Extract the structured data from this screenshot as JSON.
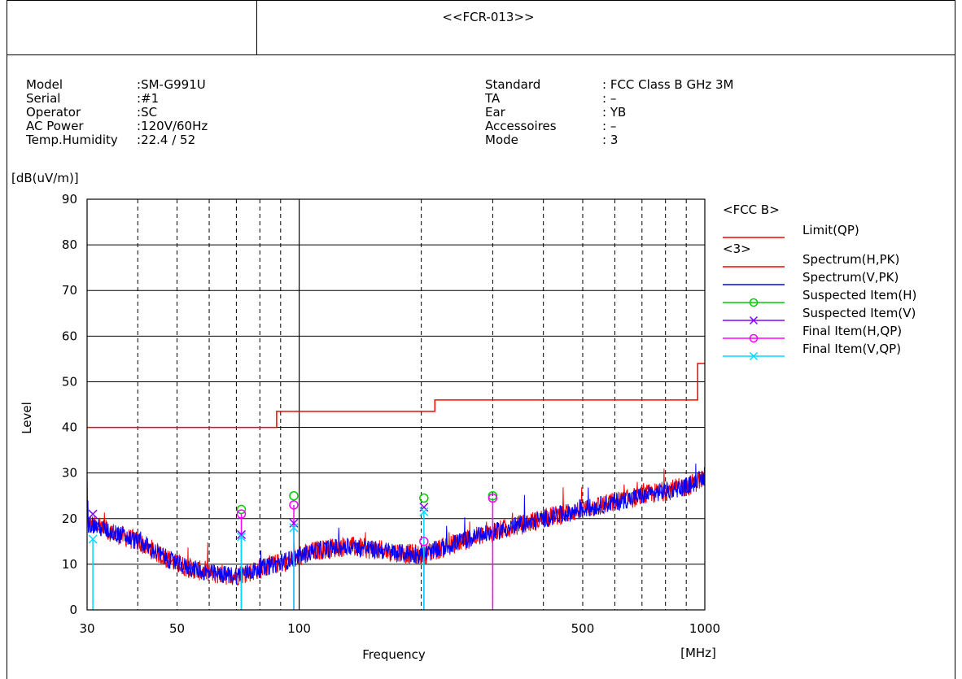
{
  "header": {
    "doc_id": "<<FCR-013>>"
  },
  "info_left": [
    {
      "key": "Model",
      "value": "SM-G991U"
    },
    {
      "key": "Serial",
      "value": "#1"
    },
    {
      "key": "Operator",
      "value": "SC"
    },
    {
      "key": "AC Power",
      "value": "120V/60Hz"
    },
    {
      "key": "Temp.Humidity",
      "value": "22.4 / 52"
    }
  ],
  "info_right": [
    {
      "key": "Standard",
      "value": "FCC Class B GHz 3M"
    },
    {
      "key": "TA",
      "value": "–"
    },
    {
      "key": "Ear",
      "value": "YB"
    },
    {
      "key": "Accessoires",
      "value": "–"
    },
    {
      "key": "Mode",
      "value": "3"
    }
  ],
  "chart_data": {
    "type": "line",
    "ylabel": "Level",
    "yunit": "[dB(uV/m)]",
    "xlabel": "Frequency",
    "xunit": "[MHz]",
    "xscale": "log",
    "xlim": [
      30,
      1000
    ],
    "ylim": [
      0,
      90
    ],
    "x_ticks": [
      30,
      50,
      100,
      500,
      1000
    ],
    "y_ticks": [
      0,
      10,
      20,
      30,
      40,
      50,
      60,
      70,
      80,
      90
    ],
    "grid": true,
    "legend_position": "right",
    "colors": {
      "red": "#ff0000",
      "blue": "#0000ff",
      "green": "#00cc00",
      "purple": "#8a00ff",
      "magenta": "#ff00ff",
      "cyan": "#00d8ff"
    },
    "legend": [
      {
        "group": "<FCC B>"
      },
      {
        "name": "Limit(QP)",
        "color": "#ff0000",
        "marker": "none"
      },
      {
        "group": "<3>"
      },
      {
        "name": "Spectrum(H,PK)",
        "color": "#ff0000",
        "marker": "none"
      },
      {
        "name": "Spectrum(V,PK)",
        "color": "#0000ff",
        "marker": "none"
      },
      {
        "name": "Suspected Item(H)",
        "color": "#00cc00",
        "marker": "circle"
      },
      {
        "name": "Suspected Item(V)",
        "color": "#8a00ff",
        "marker": "cross"
      },
      {
        "name": "Final Item(H,QP)",
        "color": "#ff00ff",
        "marker": "circle"
      },
      {
        "name": "Final Item(V,QP)",
        "color": "#00d8ff",
        "marker": "cross"
      }
    ],
    "limit_qp": [
      {
        "x": 30,
        "y": 40
      },
      {
        "x": 88,
        "y": 40
      },
      {
        "x": 88,
        "y": 43.5
      },
      {
        "x": 216,
        "y": 43.5
      },
      {
        "x": 216,
        "y": 46
      },
      {
        "x": 960,
        "y": 46
      },
      {
        "x": 960,
        "y": 54
      },
      {
        "x": 1000,
        "y": 54
      }
    ],
    "spectrum_envelope": [
      {
        "x": 30,
        "y": 19
      },
      {
        "x": 40,
        "y": 15
      },
      {
        "x": 50,
        "y": 10
      },
      {
        "x": 60,
        "y": 8
      },
      {
        "x": 70,
        "y": 7.5
      },
      {
        "x": 80,
        "y": 9
      },
      {
        "x": 95,
        "y": 11
      },
      {
        "x": 110,
        "y": 13
      },
      {
        "x": 130,
        "y": 14
      },
      {
        "x": 160,
        "y": 13
      },
      {
        "x": 200,
        "y": 12
      },
      {
        "x": 250,
        "y": 15
      },
      {
        "x": 300,
        "y": 17
      },
      {
        "x": 400,
        "y": 20
      },
      {
        "x": 500,
        "y": 22
      },
      {
        "x": 700,
        "y": 25
      },
      {
        "x": 900,
        "y": 27
      },
      {
        "x": 1000,
        "y": 29
      }
    ],
    "suspected_h": [
      {
        "x": 72,
        "y": 22
      },
      {
        "x": 97,
        "y": 25
      },
      {
        "x": 203,
        "y": 24.5
      },
      {
        "x": 300,
        "y": 25
      }
    ],
    "suspected_v": [
      {
        "x": 31,
        "y": 21
      },
      {
        "x": 72,
        "y": 16.5
      },
      {
        "x": 97,
        "y": 19
      },
      {
        "x": 203,
        "y": 22.5
      }
    ],
    "final_h_qp": [
      {
        "x": 72,
        "y": 21
      },
      {
        "x": 97,
        "y": 23
      },
      {
        "x": 203,
        "y": 15
      },
      {
        "x": 300,
        "y": 24.5
      }
    ],
    "final_v_qp": [
      {
        "x": 31,
        "y": 15.5
      },
      {
        "x": 72,
        "y": 16
      },
      {
        "x": 97,
        "y": 18
      },
      {
        "x": 203,
        "y": 21.5
      }
    ]
  }
}
